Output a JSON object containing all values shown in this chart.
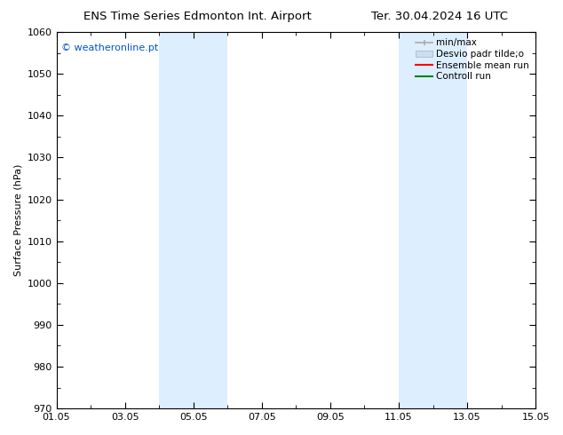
{
  "title_left": "ENS Time Series Edmonton Int. Airport",
  "title_right": "Ter. 30.04.2024 16 UTC",
  "ylabel": "Surface Pressure (hPa)",
  "ylim": [
    970,
    1060
  ],
  "yticks": [
    970,
    980,
    990,
    1000,
    1010,
    1020,
    1030,
    1040,
    1050,
    1060
  ],
  "xtick_labels": [
    "01.05",
    "03.05",
    "05.05",
    "07.05",
    "09.05",
    "11.05",
    "13.05",
    "15.05"
  ],
  "xtick_positions": [
    0,
    2,
    4,
    6,
    8,
    10,
    12,
    14
  ],
  "xlim": [
    0,
    14
  ],
  "shaded_regions": [
    {
      "start": 3,
      "end": 4
    },
    {
      "start": 4,
      "end": 5
    },
    {
      "start": 10,
      "end": 11
    },
    {
      "start": 11,
      "end": 12
    }
  ],
  "shaded_color": "#ddeeff",
  "watermark_text": "© weatheronline.pt",
  "watermark_color": "#0055cc",
  "legend_labels": [
    "min/max",
    "Desvio padr tilde;o",
    "Ensemble mean run",
    "Controll run"
  ],
  "legend_colors_line": [
    "#aaaaaa",
    "#ccddee",
    "red",
    "green"
  ],
  "bg_color": "#ffffff",
  "font_size": 8,
  "title_fontsize": 9.5
}
